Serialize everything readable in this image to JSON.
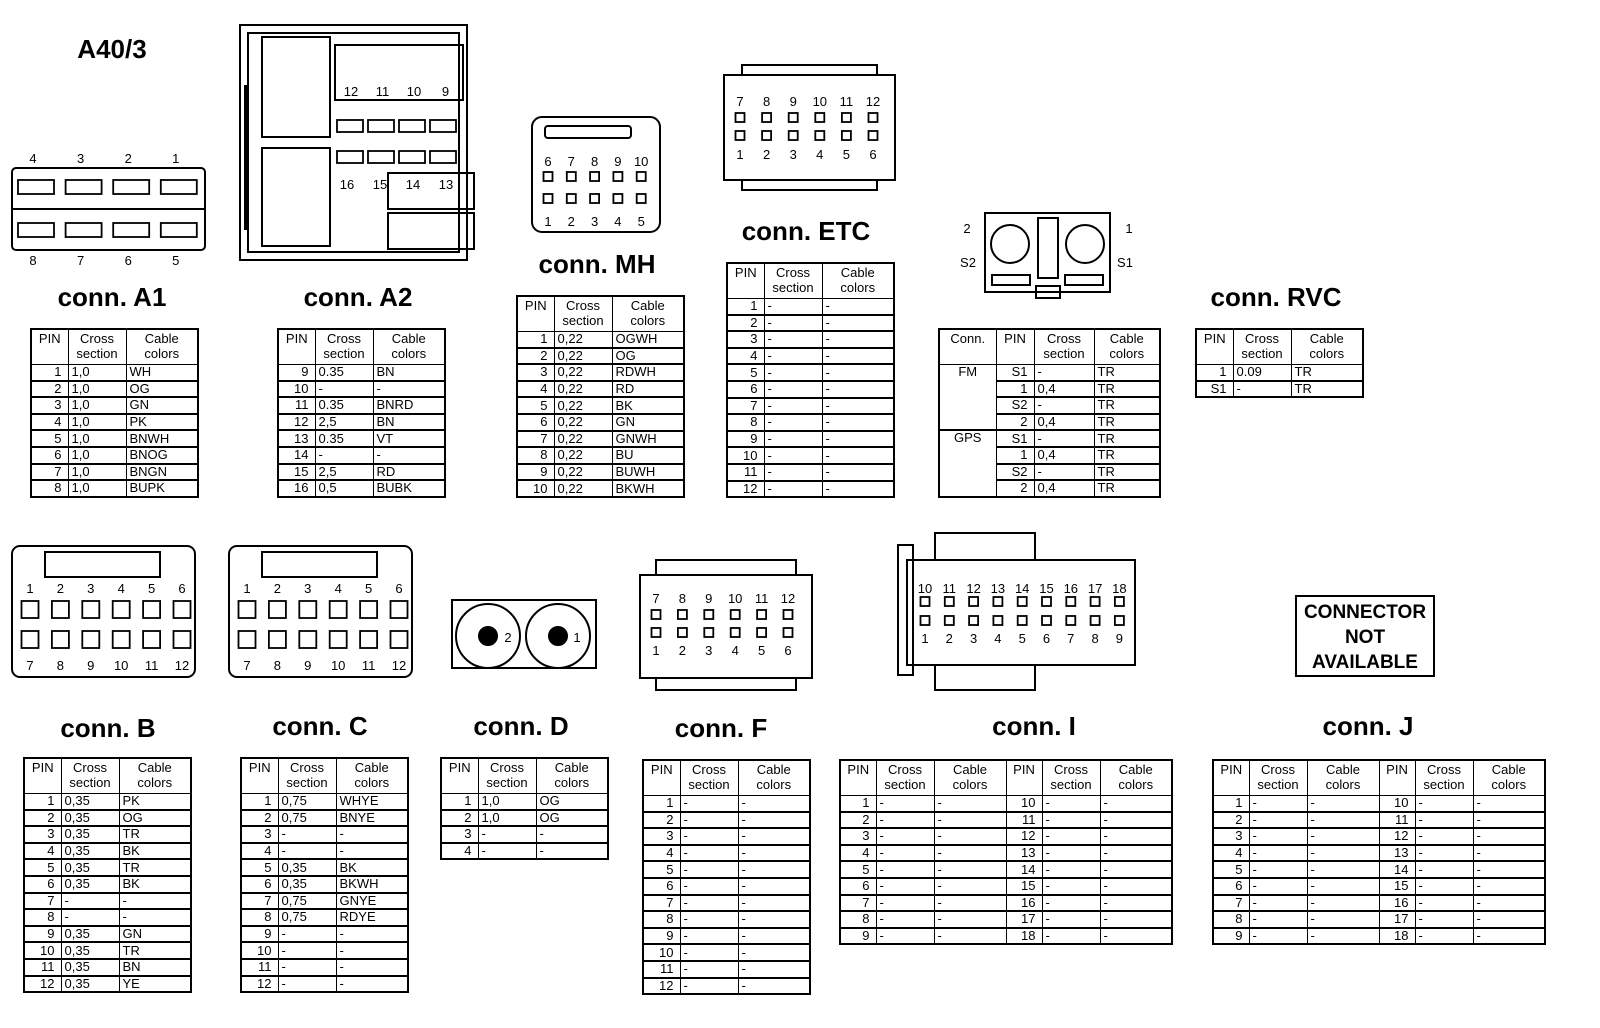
{
  "page_title": "A40/3",
  "not_available": [
    "CONNECTOR",
    "NOT",
    "AVAILABLE"
  ],
  "connectors": {
    "a1": {
      "title": "conn. A1",
      "pins_top": [
        "4",
        "3",
        "2",
        "1"
      ],
      "pins_bottom": [
        "8",
        "7",
        "6",
        "5"
      ],
      "table": {
        "headers": [
          "PIN",
          "Cross\nsection",
          "Cable\ncolors"
        ],
        "rows": [
          [
            "1",
            "1,0",
            "WH"
          ],
          [
            "2",
            "1,0",
            "OG"
          ],
          [
            "3",
            "1,0",
            "GN"
          ],
          [
            "4",
            "1,0",
            "PK"
          ],
          [
            "5",
            "1,0",
            "BNWH"
          ],
          [
            "6",
            "1,0",
            "BNOG"
          ],
          [
            "7",
            "1,0",
            "BNGN"
          ],
          [
            "8",
            "1,0",
            "BUPK"
          ]
        ]
      }
    },
    "a2": {
      "title": "conn. A2",
      "pins_top": [
        "12",
        "11",
        "10",
        "9"
      ],
      "pins_bottom": [
        "16",
        "15",
        "14",
        "13"
      ],
      "table": {
        "headers": [
          "PIN",
          "Cross\nsection",
          "Cable\ncolors"
        ],
        "rows": [
          [
            "9",
            "0.35",
            "BN"
          ],
          [
            "10",
            "-",
            "-"
          ],
          [
            "11",
            "0.35",
            "BNRD"
          ],
          [
            "12",
            "2,5",
            "BN"
          ],
          [
            "13",
            "0.35",
            "VT"
          ],
          [
            "14",
            "-",
            "-"
          ],
          [
            "15",
            "2,5",
            "RD"
          ],
          [
            "16",
            "0,5",
            "BUBK"
          ]
        ]
      }
    },
    "mh": {
      "title": "conn. MH",
      "pins_top": [
        "6",
        "7",
        "8",
        "9",
        "10"
      ],
      "pins_bottom": [
        "1",
        "2",
        "3",
        "4",
        "5"
      ],
      "table": {
        "headers": [
          "PIN",
          "Cross\nsection",
          "Cable\ncolors"
        ],
        "rows": [
          [
            "1",
            "0,22",
            "OGWH"
          ],
          [
            "2",
            "0,22",
            "OG"
          ],
          [
            "3",
            "0,22",
            "RDWH"
          ],
          [
            "4",
            "0,22",
            "RD"
          ],
          [
            "5",
            "0,22",
            "BK"
          ],
          [
            "6",
            "0,22",
            "GN"
          ],
          [
            "7",
            "0,22",
            "GNWH"
          ],
          [
            "8",
            "0,22",
            "BU"
          ],
          [
            "9",
            "0,22",
            "BUWH"
          ],
          [
            "10",
            "0,22",
            "BKWH"
          ]
        ]
      }
    },
    "etc": {
      "title": "conn. ETC",
      "pins_top": [
        "7",
        "8",
        "9",
        "10",
        "11",
        "12"
      ],
      "pins_bottom": [
        "1",
        "2",
        "3",
        "4",
        "5",
        "6"
      ],
      "table": {
        "headers": [
          "PIN",
          "Cross\nsection",
          "Cable\ncolors"
        ],
        "rows": [
          [
            "1",
            "-",
            "-"
          ],
          [
            "2",
            "-",
            "-"
          ],
          [
            "3",
            "-",
            "-"
          ],
          [
            "4",
            "-",
            "-"
          ],
          [
            "5",
            "-",
            "-"
          ],
          [
            "6",
            "-",
            "-"
          ],
          [
            "7",
            "-",
            "-"
          ],
          [
            "8",
            "-",
            "-"
          ],
          [
            "9",
            "-",
            "-"
          ],
          [
            "10",
            "-",
            "-"
          ],
          [
            "11",
            "-",
            "-"
          ],
          [
            "12",
            "-",
            "-"
          ]
        ]
      }
    },
    "antenna": {
      "pins": [
        "2",
        "1",
        "S2",
        "S1"
      ],
      "table": {
        "headers": [
          "Conn.",
          "PIN",
          "Cross\nsection",
          "Cable\ncolors"
        ],
        "rows": [
          [
            "FM",
            "S1",
            "-",
            "TR"
          ],
          [
            "",
            "1",
            "0,4",
            "TR"
          ],
          [
            "",
            "S2",
            "-",
            "TR"
          ],
          [
            "",
            "2",
            "0,4",
            "TR"
          ],
          [
            "GPS",
            "S1",
            "-",
            "TR"
          ],
          [
            "",
            "1",
            "0,4",
            "TR"
          ],
          [
            "",
            "S2",
            "-",
            "TR"
          ],
          [
            "",
            "2",
            "0,4",
            "TR"
          ]
        ]
      }
    },
    "rvc": {
      "title": "conn. RVC",
      "table": {
        "headers": [
          "PIN",
          "Cross\nsection",
          "Cable\ncolors"
        ],
        "rows": [
          [
            "1",
            "0.09",
            "TR"
          ],
          [
            "S1",
            "-",
            "TR"
          ]
        ]
      }
    },
    "b": {
      "title": "conn. B",
      "pins_top": [
        "1",
        "2",
        "3",
        "4",
        "5",
        "6"
      ],
      "pins_bottom": [
        "7",
        "8",
        "9",
        "10",
        "11",
        "12"
      ],
      "table": {
        "headers": [
          "PIN",
          "Cross\nsection",
          "Cable\ncolors"
        ],
        "rows": [
          [
            "1",
            "0,35",
            "PK"
          ],
          [
            "2",
            "0,35",
            "OG"
          ],
          [
            "3",
            "0,35",
            "TR"
          ],
          [
            "4",
            "0,35",
            "BK"
          ],
          [
            "5",
            "0,35",
            "TR"
          ],
          [
            "6",
            "0,35",
            "BK"
          ],
          [
            "7",
            "-",
            "-"
          ],
          [
            "8",
            "-",
            "-"
          ],
          [
            "9",
            "0,35",
            "GN"
          ],
          [
            "10",
            "0,35",
            "TR"
          ],
          [
            "11",
            "0,35",
            "BN"
          ],
          [
            "12",
            "0,35",
            "YE"
          ]
        ]
      }
    },
    "c": {
      "title": "conn. C",
      "pins_top": [
        "1",
        "2",
        "3",
        "4",
        "5",
        "6"
      ],
      "pins_bottom": [
        "7",
        "8",
        "9",
        "10",
        "11",
        "12"
      ],
      "table": {
        "headers": [
          "PIN",
          "Cross\nsection",
          "Cable\ncolors"
        ],
        "rows": [
          [
            "1",
            "0,75",
            "WHYE"
          ],
          [
            "2",
            "0,75",
            "BNYE"
          ],
          [
            "3",
            "-",
            "-"
          ],
          [
            "4",
            "-",
            "-"
          ],
          [
            "5",
            "0,35",
            "BK"
          ],
          [
            "6",
            "0,35",
            "BKWH"
          ],
          [
            "7",
            "0,75",
            "GNYE"
          ],
          [
            "8",
            "0,75",
            "RDYE"
          ],
          [
            "9",
            "-",
            "-"
          ],
          [
            "10",
            "-",
            "-"
          ],
          [
            "11",
            "-",
            "-"
          ],
          [
            "12",
            "-",
            "-"
          ]
        ]
      }
    },
    "d": {
      "title": "conn. D",
      "pins": [
        "2",
        "1"
      ],
      "table": {
        "headers": [
          "PIN",
          "Cross\nsection",
          "Cable\ncolors"
        ],
        "rows": [
          [
            "1",
            "1,0",
            "OG"
          ],
          [
            "2",
            "1,0",
            "OG"
          ],
          [
            "3",
            "-",
            "-"
          ],
          [
            "4",
            "-",
            "-"
          ]
        ]
      }
    },
    "f": {
      "title": "conn. F",
      "pins_top": [
        "7",
        "8",
        "9",
        "10",
        "11",
        "12"
      ],
      "pins_bottom": [
        "1",
        "2",
        "3",
        "4",
        "5",
        "6"
      ],
      "table": {
        "headers": [
          "PIN",
          "Cross\nsection",
          "Cable\ncolors"
        ],
        "rows": [
          [
            "1",
            "-",
            "-"
          ],
          [
            "2",
            "-",
            "-"
          ],
          [
            "3",
            "-",
            "-"
          ],
          [
            "4",
            "-",
            "-"
          ],
          [
            "5",
            "-",
            "-"
          ],
          [
            "6",
            "-",
            "-"
          ],
          [
            "7",
            "-",
            "-"
          ],
          [
            "8",
            "-",
            "-"
          ],
          [
            "9",
            "-",
            "-"
          ],
          [
            "10",
            "-",
            "-"
          ],
          [
            "11",
            "-",
            "-"
          ],
          [
            "12",
            "-",
            "-"
          ]
        ]
      }
    },
    "i": {
      "title": "conn. I",
      "pins_top": [
        "10",
        "11",
        "12",
        "13",
        "14",
        "15",
        "16",
        "17",
        "18"
      ],
      "pins_bottom": [
        "1",
        "2",
        "3",
        "4",
        "5",
        "6",
        "7",
        "8",
        "9"
      ],
      "table": {
        "headers": [
          "PIN",
          "Cross\nsection",
          "Cable\ncolors",
          "PIN",
          "Cross\nsection",
          "Cable\ncolors"
        ],
        "rows": [
          [
            "1",
            "-",
            "-",
            "10",
            "-",
            "-"
          ],
          [
            "2",
            "-",
            "-",
            "11",
            "-",
            "-"
          ],
          [
            "3",
            "-",
            "-",
            "12",
            "-",
            "-"
          ],
          [
            "4",
            "-",
            "-",
            "13",
            "-",
            "-"
          ],
          [
            "5",
            "-",
            "-",
            "14",
            "-",
            "-"
          ],
          [
            "6",
            "-",
            "-",
            "15",
            "-",
            "-"
          ],
          [
            "7",
            "-",
            "-",
            "16",
            "-",
            "-"
          ],
          [
            "8",
            "-",
            "-",
            "17",
            "-",
            "-"
          ],
          [
            "9",
            "-",
            "-",
            "18",
            "-",
            "-"
          ]
        ]
      }
    },
    "j": {
      "title": "conn. J",
      "table": {
        "headers": [
          "PIN",
          "Cross\nsection",
          "Cable\ncolors",
          "PIN",
          "Cross\nsection",
          "Cable\ncolors"
        ],
        "rows": [
          [
            "1",
            "-",
            "-",
            "10",
            "-",
            "-"
          ],
          [
            "2",
            "-",
            "-",
            "11",
            "-",
            "-"
          ],
          [
            "3",
            "-",
            "-",
            "12",
            "-",
            "-"
          ],
          [
            "4",
            "-",
            "-",
            "13",
            "-",
            "-"
          ],
          [
            "5",
            "-",
            "-",
            "14",
            "-",
            "-"
          ],
          [
            "6",
            "-",
            "-",
            "15",
            "-",
            "-"
          ],
          [
            "7",
            "-",
            "-",
            "16",
            "-",
            "-"
          ],
          [
            "8",
            "-",
            "-",
            "17",
            "-",
            "-"
          ],
          [
            "9",
            "-",
            "-",
            "18",
            "-",
            "-"
          ]
        ]
      }
    }
  }
}
